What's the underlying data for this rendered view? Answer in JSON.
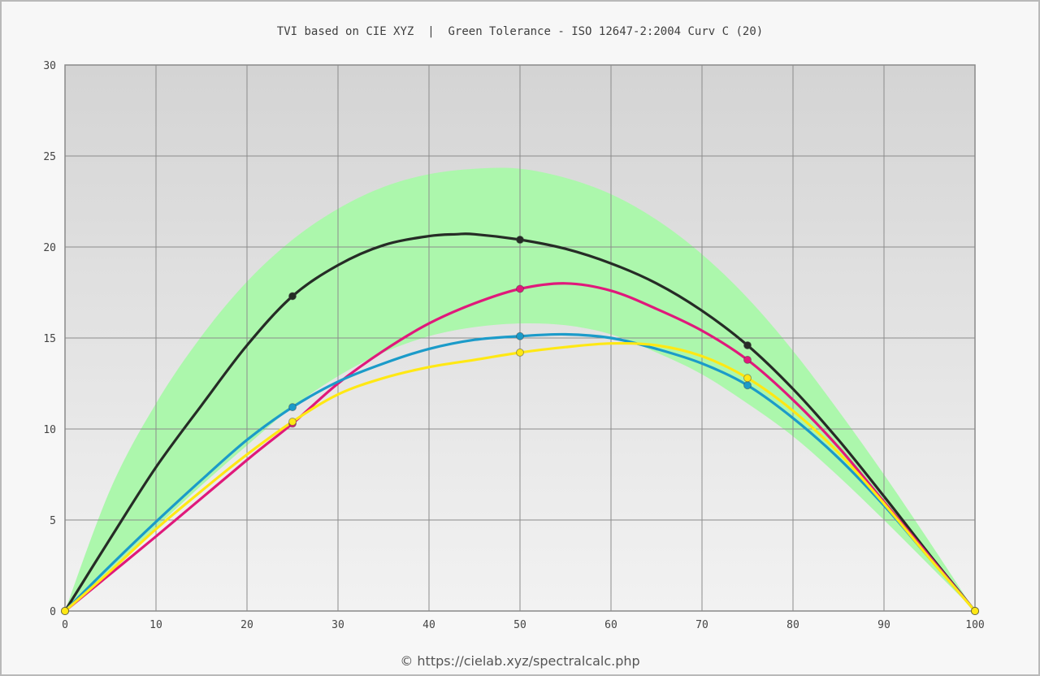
{
  "title": "TVI based on CIE XYZ  |  Green Tolerance - ISO 12647-2:2004 Curv C (20)",
  "credit": "© https://cielab.xyz/spectralcalc.php",
  "colors": {
    "frame_border": "#b9b9b9",
    "plot_border": "#8a8a8a",
    "grid": "#8c8c8c",
    "tolerance_band": "#acf7ac",
    "black": "#262c26",
    "magenta": "#e0197b",
    "cyan": "#1b9bc9",
    "yellow": "#ffe814"
  },
  "chart_data": {
    "type": "line",
    "title": "TVI based on CIE XYZ  |  Green Tolerance - ISO 12647-2:2004 Curv C (20)",
    "xlabel": "",
    "ylabel": "",
    "xlim": [
      0,
      100
    ],
    "ylim": [
      0,
      30
    ],
    "x_ticks": [
      "0",
      "10",
      "20",
      "30",
      "40",
      "50",
      "60",
      "70",
      "80",
      "90",
      "100"
    ],
    "y_ticks": [
      "0",
      "5",
      "10",
      "15",
      "20",
      "25",
      "30"
    ],
    "grid": true,
    "legend": "none",
    "tolerance_band": {
      "name": "",
      "x": [
        0,
        5,
        10,
        15,
        20,
        25,
        30,
        35,
        40,
        45,
        50,
        55,
        60,
        65,
        70,
        75,
        80,
        85,
        90,
        95,
        100
      ],
      "upper": [
        0,
        6.7,
        11.4,
        15.1,
        18.1,
        20.4,
        22.1,
        23.3,
        24.0,
        24.3,
        24.3,
        23.8,
        22.9,
        21.5,
        19.6,
        17.2,
        14.3,
        11.0,
        7.5,
        3.8,
        0
      ],
      "lower": [
        0,
        2.3,
        4.6,
        6.9,
        9.1,
        11.2,
        12.9,
        14.2,
        15.1,
        15.6,
        15.8,
        15.7,
        15.2,
        14.2,
        13.0,
        11.4,
        9.6,
        7.4,
        5.0,
        2.5,
        0
      ]
    },
    "series": [
      {
        "color": "#262c26",
        "x": [
          0,
          5,
          10,
          15,
          20,
          25,
          30,
          35,
          40,
          43,
          45,
          50,
          55,
          60,
          65,
          70,
          75,
          80,
          85,
          90,
          95,
          100
        ],
        "values": [
          0,
          4.0,
          7.9,
          11.3,
          14.6,
          17.3,
          19.0,
          20.1,
          20.6,
          20.7,
          20.7,
          20.4,
          19.9,
          19.1,
          18.0,
          16.5,
          14.6,
          12.2,
          9.4,
          6.3,
          3.1,
          0
        ],
        "markers_x": [
          0,
          25,
          50,
          75,
          100
        ],
        "markers_y": [
          0,
          17.3,
          20.4,
          14.6,
          0
        ]
      },
      {
        "color": "#e0197b",
        "x": [
          0,
          10,
          20,
          25,
          30,
          35,
          40,
          45,
          50,
          55,
          60,
          65,
          70,
          75,
          80,
          85,
          90,
          95,
          100
        ],
        "values": [
          0,
          4.1,
          8.3,
          10.3,
          12.5,
          14.3,
          15.8,
          16.9,
          17.7,
          18.0,
          17.6,
          16.6,
          15.4,
          13.8,
          11.6,
          9.0,
          6.0,
          3.0,
          0
        ],
        "markers_x": [
          0,
          25,
          50,
          75,
          100
        ],
        "markers_y": [
          0,
          10.3,
          17.7,
          13.8,
          0
        ]
      },
      {
        "color": "#1b9bc9",
        "x": [
          0,
          5,
          10,
          15,
          20,
          25,
          30,
          35,
          40,
          45,
          50,
          55,
          60,
          65,
          70,
          75,
          80,
          85,
          90,
          95,
          100
        ],
        "values": [
          0,
          2.5,
          4.9,
          7.2,
          9.4,
          11.2,
          12.6,
          13.6,
          14.4,
          14.9,
          15.1,
          15.2,
          15.0,
          14.4,
          13.6,
          12.4,
          10.6,
          8.4,
          5.8,
          2.9,
          0
        ],
        "markers_x": [
          0,
          25,
          50,
          75,
          100
        ],
        "markers_y": [
          0,
          11.2,
          15.1,
          12.4,
          0
        ]
      },
      {
        "color": "#ffe814",
        "x": [
          0,
          5,
          10,
          15,
          20,
          25,
          30,
          35,
          40,
          45,
          50,
          55,
          60,
          65,
          70,
          75,
          80,
          85,
          90,
          95,
          100
        ],
        "values": [
          0,
          2.2,
          4.5,
          6.6,
          8.6,
          10.4,
          11.9,
          12.8,
          13.4,
          13.8,
          14.2,
          14.5,
          14.7,
          14.6,
          14.0,
          12.8,
          11.0,
          8.7,
          5.9,
          2.9,
          0
        ],
        "markers_x": [
          0,
          25,
          50,
          75,
          100
        ],
        "markers_y": [
          0,
          10.4,
          14.2,
          12.8,
          0
        ]
      }
    ]
  }
}
